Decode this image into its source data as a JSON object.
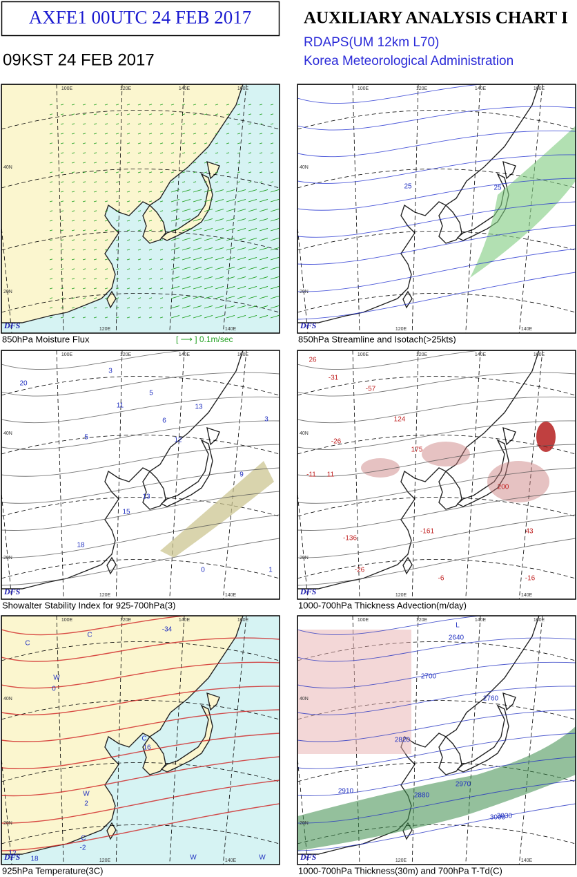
{
  "header": {
    "code_title": "AXFE1  00UTC 24 FEB 2017",
    "local_time": "09KST 24 FEB 2017",
    "chart_title": "AUXILIARY ANALYSIS CHART I",
    "model": "RDAPS(UM 12km L70)",
    "agency": "Korea Meteorological Administration"
  },
  "panels": [
    {
      "caption": "850hPa Moisture Flux",
      "logo": "DFS",
      "legend": "[  ⟶  ] 0.1m/sec",
      "top_lon_labels": [
        "100E",
        "120E",
        "140E",
        "160E"
      ],
      "lat_labels": [
        "40N",
        "20N"
      ],
      "bottom_lon_labels": [
        "120E",
        "140E"
      ],
      "map_labels": []
    },
    {
      "caption": "850hPa Streamline and Isotach(>25kts)",
      "logo": "DFS",
      "top_lon_labels": [
        "100E",
        "120E",
        "140E",
        "160E"
      ],
      "lat_labels": [
        "40N",
        "20N"
      ],
      "bottom_lon_labels": [
        "120E",
        "140E"
      ],
      "map_labels": [
        "25",
        "25"
      ]
    },
    {
      "caption": "Showalter Stability Index for 925-700hPa(3)",
      "logo": "DFS",
      "top_lon_labels": [
        "100E",
        "120E",
        "140E",
        "160E"
      ],
      "lat_labels": [
        "40N",
        "20N"
      ],
      "bottom_lon_labels": [
        "120E",
        "140E"
      ],
      "map_labels": [
        "20",
        "3",
        "5",
        "11",
        "6",
        "5",
        "13",
        "12",
        "15",
        "13",
        "9",
        "3",
        "18",
        "0",
        "1"
      ]
    },
    {
      "caption": "1000-700hPa Thickness Advection(m/day)",
      "logo": "DFS",
      "top_lon_labels": [
        "100E",
        "120E",
        "140E",
        "160E"
      ],
      "lat_labels": [
        "40N",
        "20N"
      ],
      "bottom_lon_labels": [
        "120E",
        "140E"
      ],
      "map_labels": [
        "26",
        "-31",
        "-57",
        "-26",
        "124",
        "175",
        "-11",
        "11",
        "200",
        "-136",
        "-161",
        "43",
        "-16",
        "-26",
        "-6"
      ]
    },
    {
      "caption": "925hPa Temperature(3C)",
      "logo": "DFS",
      "top_lon_labels": [
        "100E",
        "120E",
        "140E",
        "160E"
      ],
      "lat_labels": [
        "40N",
        "20N"
      ],
      "bottom_lon_labels": [
        "120E",
        "140E"
      ],
      "map_labels": [
        "C",
        "W",
        "0",
        "C",
        "-34",
        "C",
        "16",
        "W",
        "2",
        "C",
        "-2",
        "W",
        "W",
        "12",
        "18"
      ]
    },
    {
      "caption": "1000-700hPa Thickness(30m) and 700hPa T-Td(C)",
      "logo": "DFS",
      "top_lon_labels": [
        "100E",
        "120E",
        "140E",
        "160E"
      ],
      "lat_labels": [
        "40N",
        "20N"
      ],
      "bottom_lon_labels": [
        "120E",
        "140E"
      ],
      "map_labels": [
        "L",
        "2640",
        "2700",
        "2760",
        "2820",
        "2880",
        "2970",
        "3000",
        "3030",
        "2910"
      ]
    }
  ]
}
